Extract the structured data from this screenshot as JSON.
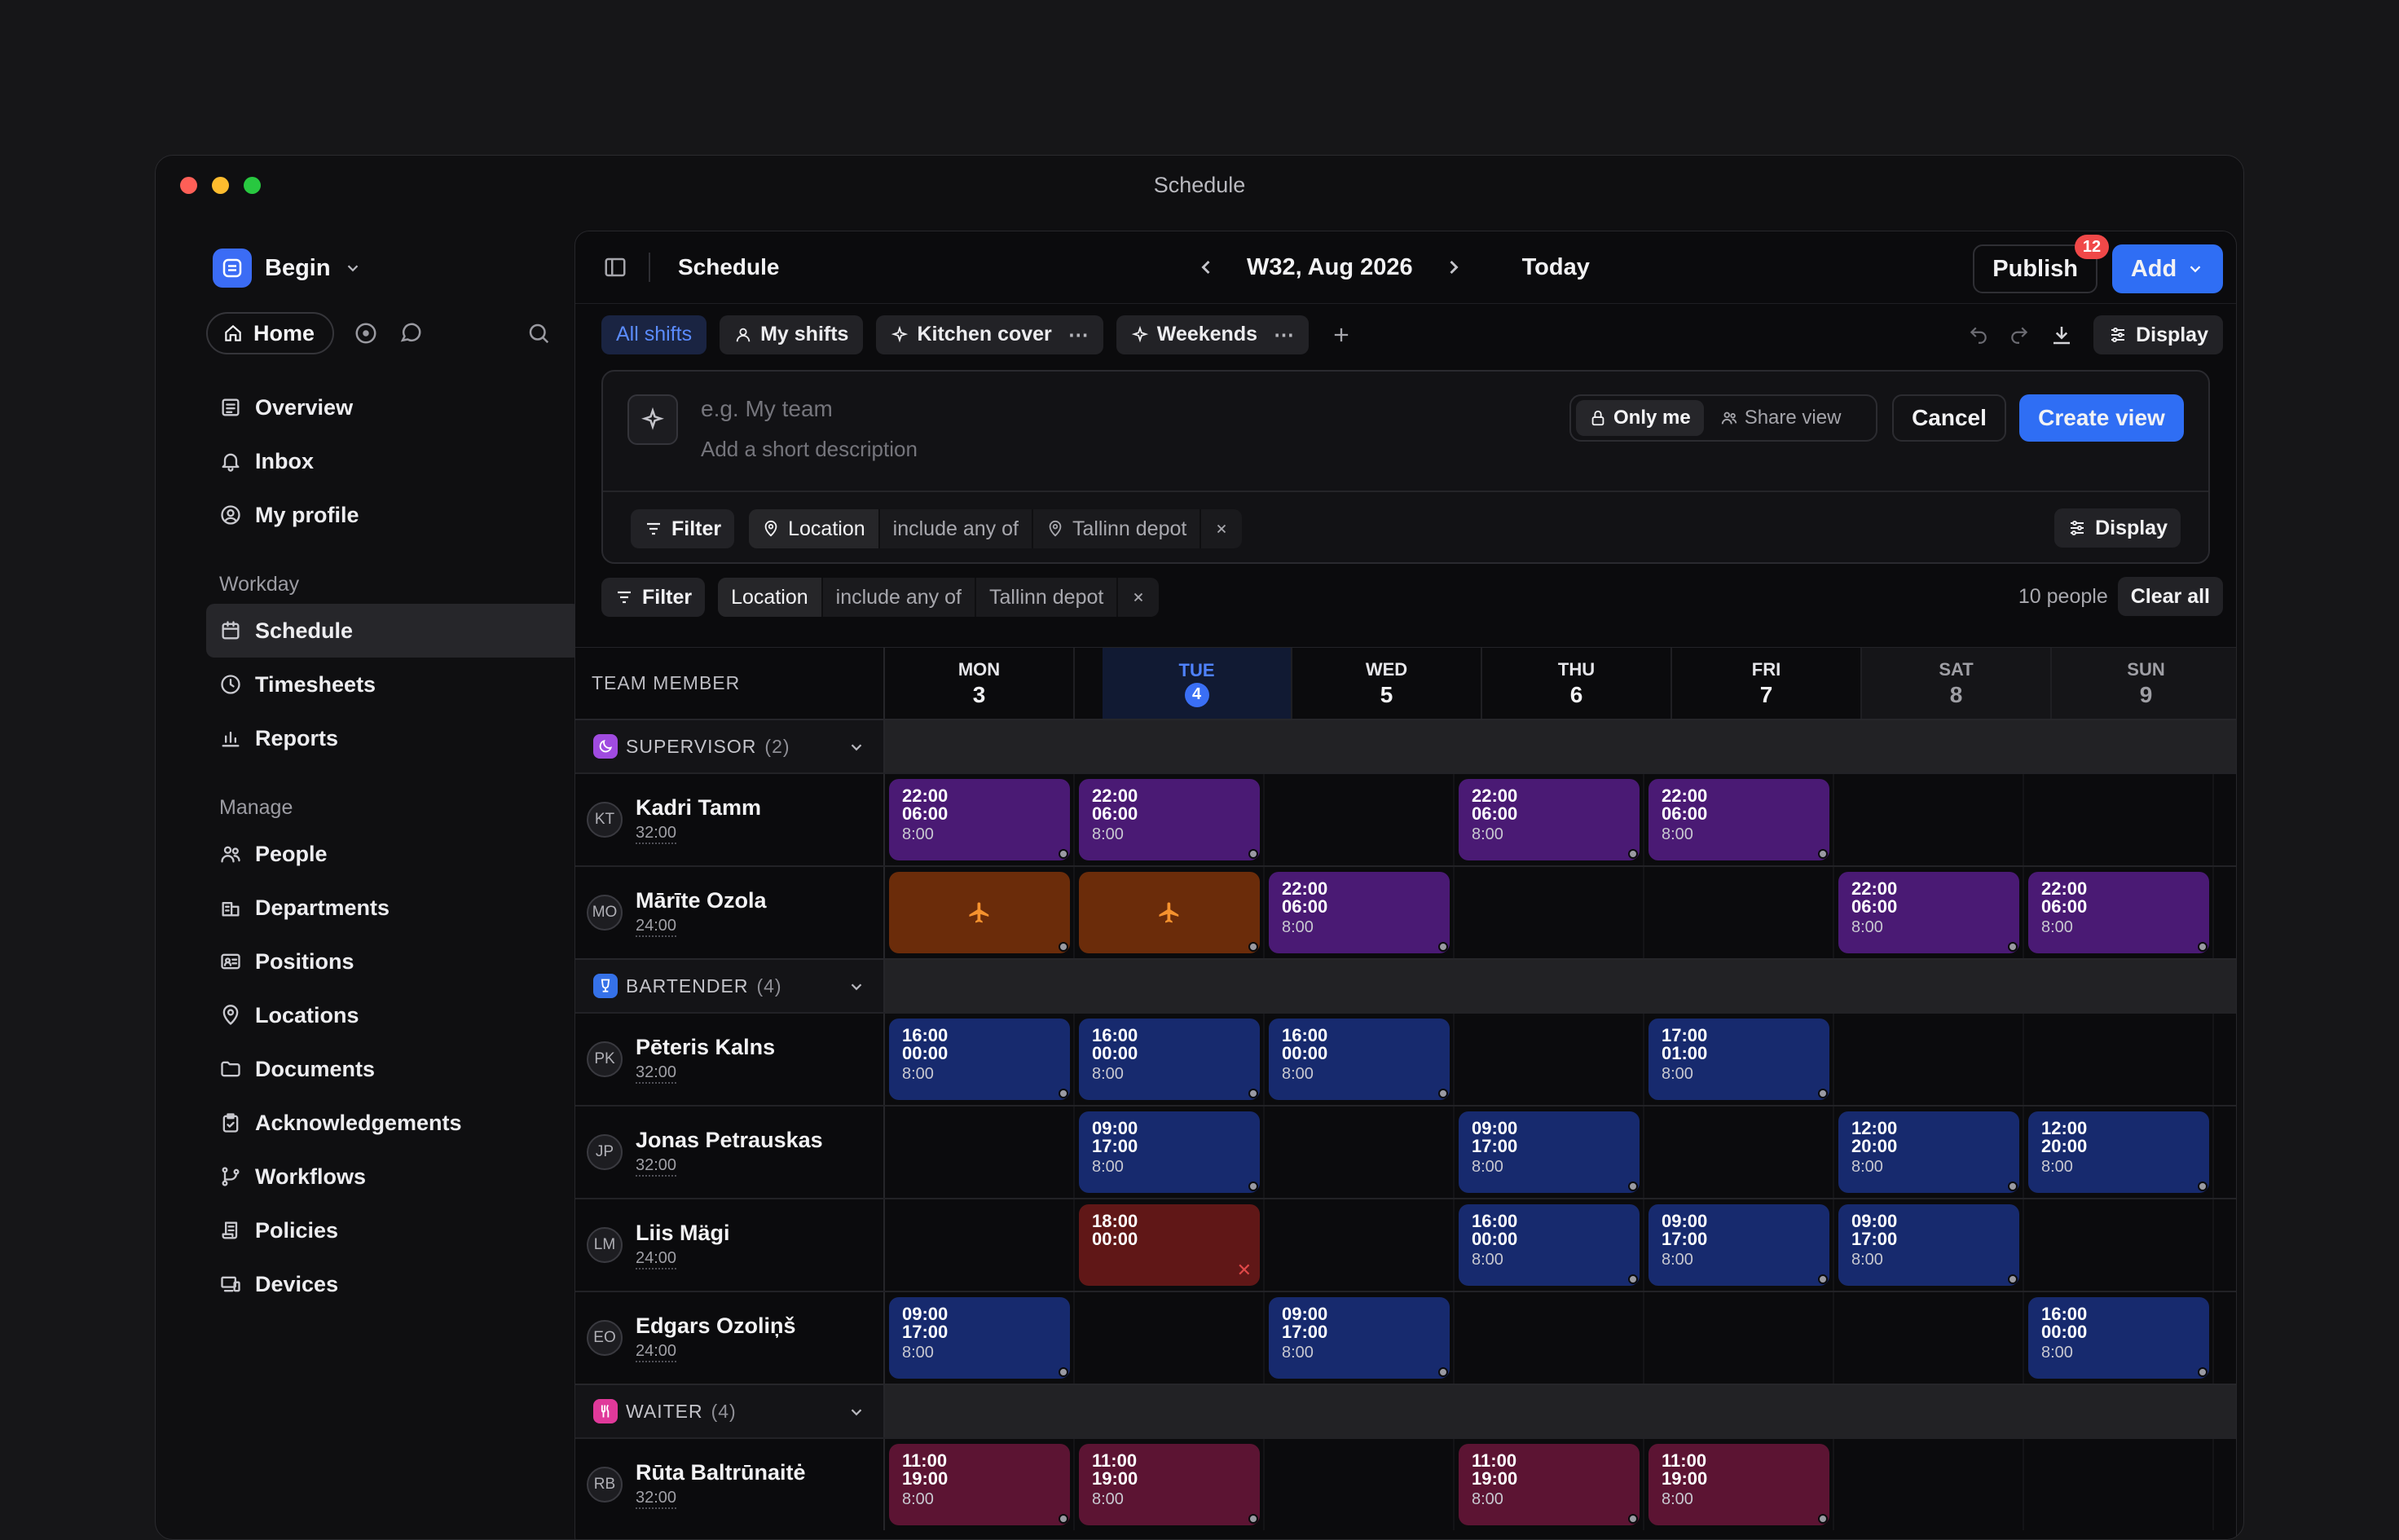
{
  "window_title": "Schedule",
  "sidebar": {
    "workspace": "Begin",
    "home": "Home",
    "top_items": [
      {
        "label": "Overview",
        "icon": "overview-icon"
      },
      {
        "label": "Inbox",
        "icon": "bell-icon"
      },
      {
        "label": "My profile",
        "icon": "profile-icon"
      }
    ],
    "sections": [
      {
        "title": "Workday",
        "items": [
          {
            "label": "Schedule",
            "icon": "calendar-icon",
            "active": true
          },
          {
            "label": "Timesheets",
            "icon": "clock-icon"
          },
          {
            "label": "Reports",
            "icon": "chart-icon"
          }
        ]
      },
      {
        "title": "Manage",
        "items": [
          {
            "label": "People",
            "icon": "people-icon"
          },
          {
            "label": "Departments",
            "icon": "building-icon"
          },
          {
            "label": "Positions",
            "icon": "id-card-icon"
          },
          {
            "label": "Locations",
            "icon": "pin-icon"
          },
          {
            "label": "Documents",
            "icon": "folder-icon"
          },
          {
            "label": "Acknowledgements",
            "icon": "clipboard-icon"
          },
          {
            "label": "Workflows",
            "icon": "branch-icon"
          },
          {
            "label": "Policies",
            "icon": "scroll-icon"
          },
          {
            "label": "Devices",
            "icon": "devices-icon"
          }
        ]
      }
    ]
  },
  "header": {
    "title": "Schedule",
    "week": "W32, Aug 2026",
    "today": "Today",
    "publish": "Publish",
    "publish_count": "12",
    "add": "Add"
  },
  "tabs": [
    {
      "label": "All shifts",
      "selected": true
    },
    {
      "label": "My shifts",
      "icon": "person"
    },
    {
      "label": "Kitchen cover",
      "icon": "sparkle",
      "menu": true
    },
    {
      "label": "Weekends",
      "icon": "sparkle",
      "menu": true
    }
  ],
  "display_label": "Display",
  "create_view": {
    "name_placeholder": "e.g. My team",
    "desc_placeholder": "Add a short description",
    "only_me": "Only me",
    "share_view": "Share view",
    "cancel": "Cancel",
    "create": "Create view",
    "filter_label": "Filter",
    "filter": {
      "field": "Location",
      "op": "include any of",
      "value": "Tallinn depot"
    },
    "display": "Display"
  },
  "active_filter": {
    "filter_label": "Filter",
    "field": "Location",
    "op": "include any of",
    "value": "Tallinn depot",
    "people_count": "10 people",
    "clear_all": "Clear all"
  },
  "grid": {
    "team_member_header": "TEAM MEMBER",
    "days": [
      {
        "name": "MON",
        "date": "3"
      },
      {
        "name": "TUE",
        "date": "4",
        "today": true
      },
      {
        "name": "WED",
        "date": "5"
      },
      {
        "name": "THU",
        "date": "6"
      },
      {
        "name": "FRI",
        "date": "7"
      },
      {
        "name": "SAT",
        "date": "8",
        "weekend": true
      },
      {
        "name": "SUN",
        "date": "9",
        "weekend": true
      }
    ],
    "groups": [
      {
        "name": "SUPERVISOR",
        "count": "(2)",
        "color": "#a04be0",
        "icon": "moon-icon",
        "people": [
          {
            "initials": "KT",
            "name": "Kadri Tamm",
            "hours": "32:00",
            "shifts": [
              {
                "day": 0,
                "kind": "night",
                "start": "22:00",
                "end": "06:00",
                "dur": "8:00"
              },
              {
                "day": 1,
                "kind": "night",
                "start": "22:00",
                "end": "06:00",
                "dur": "8:00"
              },
              {
                "day": 3,
                "kind": "night",
                "start": "22:00",
                "end": "06:00",
                "dur": "8:00"
              },
              {
                "day": 4,
                "kind": "night",
                "start": "22:00",
                "end": "06:00",
                "dur": "8:00"
              }
            ]
          },
          {
            "initials": "MO",
            "name": "Mārīte Ozola",
            "hours": "24:00",
            "shifts": [
              {
                "day": 0,
                "kind": "leave"
              },
              {
                "day": 1,
                "kind": "leave"
              },
              {
                "day": 2,
                "kind": "night",
                "start": "22:00",
                "end": "06:00",
                "dur": "8:00"
              },
              {
                "day": 5,
                "kind": "night",
                "start": "22:00",
                "end": "06:00",
                "dur": "8:00"
              },
              {
                "day": 6,
                "kind": "night",
                "start": "22:00",
                "end": "06:00",
                "dur": "8:00"
              }
            ]
          }
        ]
      },
      {
        "name": "BARTENDER",
        "count": "(4)",
        "color": "#3571e8",
        "icon": "glass-icon",
        "people": [
          {
            "initials": "PK",
            "name": "Pēteris Kalns",
            "hours": "32:00",
            "shifts": [
              {
                "day": 0,
                "kind": "bar",
                "start": "16:00",
                "end": "00:00",
                "dur": "8:00"
              },
              {
                "day": 1,
                "kind": "bar",
                "start": "16:00",
                "end": "00:00",
                "dur": "8:00"
              },
              {
                "day": 2,
                "kind": "bar",
                "start": "16:00",
                "end": "00:00",
                "dur": "8:00"
              },
              {
                "day": 4,
                "kind": "bar",
                "start": "17:00",
                "end": "01:00",
                "dur": "8:00"
              }
            ]
          },
          {
            "initials": "JP",
            "name": "Jonas Petrauskas",
            "hours": "32:00",
            "shifts": [
              {
                "day": 1,
                "kind": "bar",
                "start": "09:00",
                "end": "17:00",
                "dur": "8:00"
              },
              {
                "day": 3,
                "kind": "bar",
                "start": "09:00",
                "end": "17:00",
                "dur": "8:00"
              },
              {
                "day": 5,
                "kind": "bar",
                "start": "12:00",
                "end": "20:00",
                "dur": "8:00"
              },
              {
                "day": 6,
                "kind": "bar",
                "start": "12:00",
                "end": "20:00",
                "dur": "8:00"
              }
            ]
          },
          {
            "initials": "LM",
            "name": "Liis Mägi",
            "hours": "24:00",
            "shifts": [
              {
                "day": 1,
                "kind": "red",
                "start": "18:00",
                "end": "00:00",
                "dur": ""
              },
              {
                "day": 3,
                "kind": "bar",
                "start": "16:00",
                "end": "00:00",
                "dur": "8:00"
              },
              {
                "day": 4,
                "kind": "bar",
                "start": "09:00",
                "end": "17:00",
                "dur": "8:00"
              },
              {
                "day": 5,
                "kind": "bar",
                "start": "09:00",
                "end": "17:00",
                "dur": "8:00"
              }
            ]
          },
          {
            "initials": "EO",
            "name": "Edgars Ozoliņš",
            "hours": "24:00",
            "shifts": [
              {
                "day": 0,
                "kind": "bar",
                "start": "09:00",
                "end": "17:00",
                "dur": "8:00"
              },
              {
                "day": 2,
                "kind": "bar",
                "start": "09:00",
                "end": "17:00",
                "dur": "8:00"
              },
              {
                "day": 6,
                "kind": "bar",
                "start": "16:00",
                "end": "00:00",
                "dur": "8:00"
              }
            ]
          }
        ]
      },
      {
        "name": "WAITER",
        "count": "(4)",
        "color": "#e0399a",
        "icon": "utensils-icon",
        "people": [
          {
            "initials": "RB",
            "name": "Rūta Baltrūnaitė",
            "hours": "32:00",
            "shifts": [
              {
                "day": 0,
                "kind": "wait",
                "start": "11:00",
                "end": "19:00",
                "dur": "8:00"
              },
              {
                "day": 1,
                "kind": "wait",
                "start": "11:00",
                "end": "19:00",
                "dur": "8:00"
              },
              {
                "day": 3,
                "kind": "wait",
                "start": "11:00",
                "end": "19:00",
                "dur": "8:00"
              },
              {
                "day": 4,
                "kind": "wait",
                "start": "11:00",
                "end": "19:00",
                "dur": "8:00"
              }
            ]
          }
        ]
      }
    ]
  }
}
